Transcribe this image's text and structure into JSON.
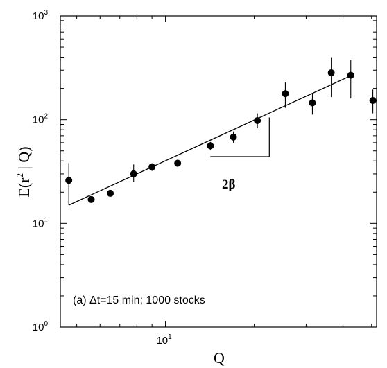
{
  "chart_data": {
    "type": "scatter",
    "title": "",
    "xlabel": "Q",
    "ylabel_parts": {
      "pre": "E(r",
      "sup": "2",
      "post": " | Q)"
    },
    "x_scale": "log",
    "y_scale": "log",
    "xlim": [
      4.4,
      52
    ],
    "ylim": [
      1,
      1000
    ],
    "x_ticks": [
      {
        "value": 10,
        "base": "10",
        "exp": "1"
      }
    ],
    "y_ticks": [
      {
        "value": 1,
        "base": "10",
        "exp": "0"
      },
      {
        "value": 10,
        "base": "10",
        "exp": "1"
      },
      {
        "value": 100,
        "base": "10",
        "exp": "2"
      },
      {
        "value": 1000,
        "base": "10",
        "exp": "3"
      }
    ],
    "annotation": "(a) Δt=15 min; 1000 stocks",
    "slope_label": "2β",
    "fit_line": {
      "x": [
        4.7,
        42.5
      ],
      "y": [
        15,
        265
      ]
    },
    "slope_triangle": {
      "x": [
        14.2,
        22.5
      ],
      "y": [
        44,
        105
      ]
    },
    "series": [
      {
        "points": [
          {
            "x": 4.7,
            "y": 26,
            "err_lo": 15,
            "err_hi": 38
          },
          {
            "x": 5.6,
            "y": 17,
            "err_lo": 16,
            "err_hi": 18
          },
          {
            "x": 6.5,
            "y": 19.5,
            "err_lo": 19,
            "err_hi": 20.5
          },
          {
            "x": 7.8,
            "y": 30,
            "err_lo": 25,
            "err_hi": 37
          },
          {
            "x": 9.0,
            "y": 35,
            "err_lo": 32,
            "err_hi": 38
          },
          {
            "x": 11.0,
            "y": 38,
            "err_lo": 36,
            "err_hi": 40
          },
          {
            "x": 14.2,
            "y": 56,
            "err_lo": 51,
            "err_hi": 61
          },
          {
            "x": 17.0,
            "y": 68,
            "err_lo": 60,
            "err_hi": 77
          },
          {
            "x": 20.5,
            "y": 98,
            "err_lo": 83,
            "err_hi": 115
          },
          {
            "x": 25.5,
            "y": 178,
            "err_lo": 130,
            "err_hi": 228
          },
          {
            "x": 31.5,
            "y": 145,
            "err_lo": 112,
            "err_hi": 178
          },
          {
            "x": 36.5,
            "y": 283,
            "err_lo": 165,
            "err_hi": 400
          },
          {
            "x": 42.5,
            "y": 268,
            "err_lo": 160,
            "err_hi": 375
          },
          {
            "x": 50.5,
            "y": 153,
            "err_lo": 115,
            "err_hi": 195
          }
        ]
      }
    ]
  }
}
